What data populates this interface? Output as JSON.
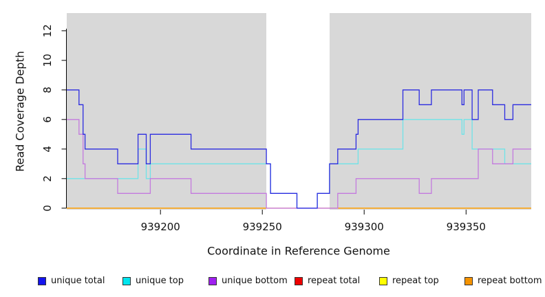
{
  "figure": {
    "background": "#ffffff",
    "panel_fill": "#d8d8d8",
    "axis_color": "#000000",
    "masked_region": {
      "start": 939252,
      "end": 939283,
      "fill": "#ffffff"
    }
  },
  "chart_data": {
    "type": "line",
    "subtype": "step-coverage",
    "title": "",
    "xlabel": "Coordinate in Reference Genome",
    "ylabel": "Read Coverage Depth",
    "xlim": [
      939154,
      939382
    ],
    "ylim": [
      -0.1,
      13.2
    ],
    "x_ticks": [
      939200,
      939250,
      939300,
      939350
    ],
    "y_ticks": [
      0,
      2,
      4,
      6,
      8,
      10,
      12
    ],
    "grid": false,
    "legend_position": "bottom",
    "series": [
      {
        "name": "unique total",
        "color": "#1414ee",
        "line_color": "#2b2be0",
        "end": 939382,
        "steps": [
          [
            939154,
            8
          ],
          [
            939160,
            7
          ],
          [
            939162,
            5
          ],
          [
            939163,
            4
          ],
          [
            939179,
            3
          ],
          [
            939189,
            5
          ],
          [
            939193,
            3
          ],
          [
            939195,
            5
          ],
          [
            939215,
            4
          ],
          [
            939252,
            3
          ],
          [
            939254,
            1
          ],
          [
            939267,
            0
          ],
          [
            939277,
            1
          ],
          [
            939283,
            3
          ],
          [
            939287,
            4
          ],
          [
            939296,
            5
          ],
          [
            939297,
            6
          ],
          [
            939319,
            8
          ],
          [
            939327,
            7
          ],
          [
            939333,
            8
          ],
          [
            939348,
            7
          ],
          [
            939349,
            8
          ],
          [
            939353,
            6
          ],
          [
            939356,
            8
          ],
          [
            939363,
            7
          ],
          [
            939369,
            6
          ],
          [
            939373,
            7
          ]
        ]
      },
      {
        "name": "unique top",
        "color": "#00e5ee",
        "line_color": "#6fe3e8",
        "end": 939382,
        "steps": [
          [
            939154,
            2
          ],
          [
            939189,
            4
          ],
          [
            939193,
            2
          ],
          [
            939195,
            3
          ],
          [
            939254,
            1
          ],
          [
            939267,
            0
          ],
          [
            939277,
            1
          ],
          [
            939283,
            3
          ],
          [
            939297,
            4
          ],
          [
            939319,
            6
          ],
          [
            939348,
            5
          ],
          [
            939349,
            6
          ],
          [
            939353,
            4
          ],
          [
            939369,
            3
          ]
        ]
      },
      {
        "name": "unique bottom",
        "color": "#a020f0",
        "line_color": "#c47ade",
        "end": 939382,
        "steps": [
          [
            939154,
            6
          ],
          [
            939160,
            5
          ],
          [
            939162,
            3
          ],
          [
            939163,
            2
          ],
          [
            939179,
            1
          ],
          [
            939195,
            2
          ],
          [
            939215,
            1
          ],
          [
            939252,
            0
          ],
          [
            939287,
            1
          ],
          [
            939296,
            2
          ],
          [
            939327,
            1
          ],
          [
            939333,
            2
          ],
          [
            939356,
            4
          ],
          [
            939363,
            3
          ],
          [
            939373,
            4
          ]
        ]
      },
      {
        "name": "repeat total",
        "color": "#ee0000",
        "line_color": "#e03030",
        "end": 939382,
        "steps": [
          [
            939154,
            0
          ]
        ]
      },
      {
        "name": "repeat top",
        "color": "#ffff00",
        "line_color": "#f5e400",
        "end": 939382,
        "steps": [
          [
            939154,
            0
          ]
        ]
      },
      {
        "name": "repeat bottom",
        "color": "#f59300",
        "line_color": "#ff9c00",
        "end": 939382,
        "steps": [
          [
            939154,
            0
          ]
        ]
      }
    ]
  },
  "legend": {
    "items": [
      {
        "label": "unique total",
        "color": "#1414ee"
      },
      {
        "label": "unique top",
        "color": "#00e5ee"
      },
      {
        "label": "unique bottom",
        "color": "#a020f0"
      },
      {
        "label": "repeat total",
        "color": "#ee0000"
      },
      {
        "label": "repeat top",
        "color": "#ffff00"
      },
      {
        "label": "repeat bottom",
        "color": "#f59300"
      }
    ]
  }
}
